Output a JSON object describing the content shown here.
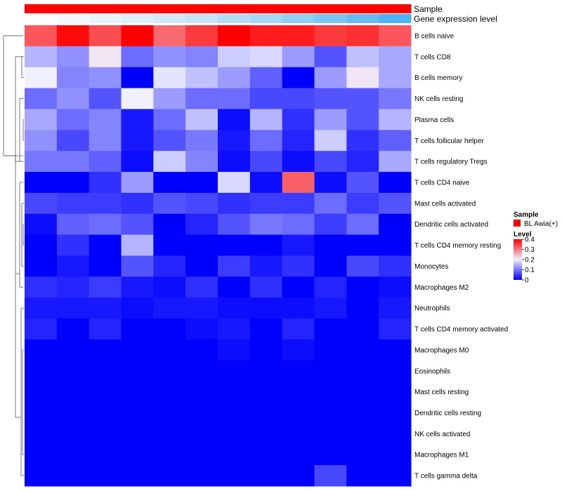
{
  "chart_data": {
    "type": "heatmap",
    "annotation_tracks": [
      {
        "name": "Sample",
        "colors": [
          "#ff0000",
          "#ff0000",
          "#ff0000",
          "#ff0000",
          "#ff0000",
          "#ff0000",
          "#ff0000",
          "#ff0000",
          "#ff0000",
          "#ff0000",
          "#ff0000",
          "#ff0000"
        ]
      },
      {
        "name": "Gene expression level",
        "colors": [
          "#ffffff",
          "#f2f9fc",
          "#e8f4fb",
          "#deeff9",
          "#d2eaf8",
          "#c5e5f7",
          "#b5ddf6",
          "#a4d6f5",
          "#91cef4",
          "#7cc5f3",
          "#66bcf2",
          "#4db3f1"
        ]
      }
    ],
    "rows": [
      "B cells naive",
      "T cells CD8",
      "B cells memory",
      "NK cells resting",
      "Plasma cells",
      "T cells follicular helper",
      "T cells regulatory  Tregs",
      "T cells CD4 naive",
      "Mast cells activated",
      "Dendritic cells activated",
      "T cells CD4 memory resting",
      "Monocytes",
      "Macrophages M2",
      "Neutrophils",
      "T cells CD4 memory activated",
      "Macrophages M0",
      "Eosinophils",
      "Mast cells resting",
      "Dendritic cells resting",
      "NK cells activated",
      "Macrophages M1",
      "T cells gamma delta"
    ],
    "values": [
      [
        0.36,
        0.44,
        0.37,
        0.45,
        0.34,
        0.39,
        0.45,
        0.42,
        0.42,
        0.39,
        0.4,
        0.36
      ],
      [
        0.15,
        0.12,
        0.21,
        0.09,
        0.12,
        0.11,
        0.17,
        0.18,
        0.13,
        0.07,
        0.16,
        0.14
      ],
      [
        0.2,
        0.11,
        0.12,
        0.0,
        0.19,
        0.16,
        0.13,
        0.08,
        0.0,
        0.13,
        0.21,
        0.14
      ],
      [
        0.09,
        0.12,
        0.07,
        0.2,
        0.13,
        0.09,
        0.09,
        0.06,
        0.06,
        0.07,
        0.07,
        0.1
      ],
      [
        0.14,
        0.09,
        0.11,
        0.02,
        0.09,
        0.16,
        0.01,
        0.15,
        0.04,
        0.13,
        0.07,
        0.15
      ],
      [
        0.12,
        0.06,
        0.11,
        0.02,
        0.07,
        0.1,
        0.02,
        0.09,
        0.03,
        0.17,
        0.04,
        0.08
      ],
      [
        0.1,
        0.1,
        0.08,
        0.01,
        0.17,
        0.11,
        0.01,
        0.06,
        0.01,
        0.06,
        0.03,
        0.14
      ],
      [
        0.0,
        0.0,
        0.04,
        0.13,
        0.0,
        0.0,
        0.18,
        0.01,
        0.35,
        0.01,
        0.07,
        0.0
      ],
      [
        0.06,
        0.05,
        0.05,
        0.04,
        0.07,
        0.06,
        0.04,
        0.05,
        0.05,
        0.09,
        0.05,
        0.07
      ],
      [
        0.01,
        0.08,
        0.09,
        0.07,
        0.0,
        0.03,
        0.07,
        0.1,
        0.09,
        0.05,
        0.09,
        0.0
      ],
      [
        0.0,
        0.04,
        0.0,
        0.15,
        0.0,
        0.0,
        0.0,
        0.0,
        0.02,
        0.0,
        0.0,
        0.0
      ],
      [
        0.0,
        0.02,
        0.0,
        0.07,
        0.03,
        0.0,
        0.05,
        0.02,
        0.04,
        0.0,
        0.06,
        0.04
      ],
      [
        0.04,
        0.03,
        0.05,
        0.02,
        0.01,
        0.04,
        0.0,
        0.04,
        0.0,
        0.03,
        0.0,
        0.01
      ],
      [
        0.02,
        0.02,
        0.02,
        0.01,
        0.02,
        0.02,
        0.01,
        0.01,
        0.01,
        0.02,
        0.0,
        0.02
      ],
      [
        0.03,
        0.0,
        0.03,
        0.0,
        0.0,
        0.01,
        0.02,
        0.0,
        0.03,
        0.0,
        0.0,
        0.03
      ],
      [
        0.0,
        0.0,
        0.0,
        0.0,
        0.0,
        0.0,
        0.01,
        0.0,
        0.01,
        0.0,
        0.0,
        0.0
      ],
      [
        0.0,
        0.0,
        0.0,
        0.0,
        0.0,
        0.0,
        0.0,
        0.0,
        0.0,
        0.0,
        0.0,
        0.0
      ],
      [
        0.0,
        0.0,
        0.0,
        0.0,
        0.0,
        0.0,
        0.0,
        0.0,
        0.0,
        0.0,
        0.0,
        0.0
      ],
      [
        0.0,
        0.0,
        0.0,
        0.0,
        0.0,
        0.0,
        0.0,
        0.0,
        0.0,
        0.0,
        0.0,
        0.0
      ],
      [
        0.0,
        0.0,
        0.0,
        0.0,
        0.0,
        0.0,
        0.0,
        0.0,
        0.0,
        0.0,
        0.0,
        0.0
      ],
      [
        0.0,
        0.0,
        0.0,
        0.0,
        0.0,
        0.0,
        0.0,
        0.0,
        0.0,
        0.0,
        0.0,
        0.0
      ],
      [
        0.0,
        0.0,
        0.0,
        0.0,
        0.0,
        0.0,
        0.0,
        0.0,
        0.0,
        0.06,
        0.0,
        0.0
      ]
    ],
    "color_scale": {
      "stops": [
        {
          "value": 0.0,
          "color": "#0000ff"
        },
        {
          "value": 0.2,
          "color": "#f0f0ff"
        },
        {
          "value": 0.45,
          "color": "#ff0000"
        }
      ],
      "cap_color": "#ffdcd2"
    },
    "legend": {
      "position": "right",
      "sample_title": "Sample",
      "sample_entry": "BL Awia(+)",
      "sample_color": "#ff0000",
      "level_title": "Level",
      "level_ticks": [
        0.4,
        0.3,
        0.2,
        0.1,
        0
      ],
      "level_tick_labels": [
        "0.4",
        "0.3",
        "0.2",
        "0.1",
        "0"
      ],
      "level_range": [
        0,
        0.4
      ]
    },
    "dendrogram": "row clustering tree on left"
  }
}
